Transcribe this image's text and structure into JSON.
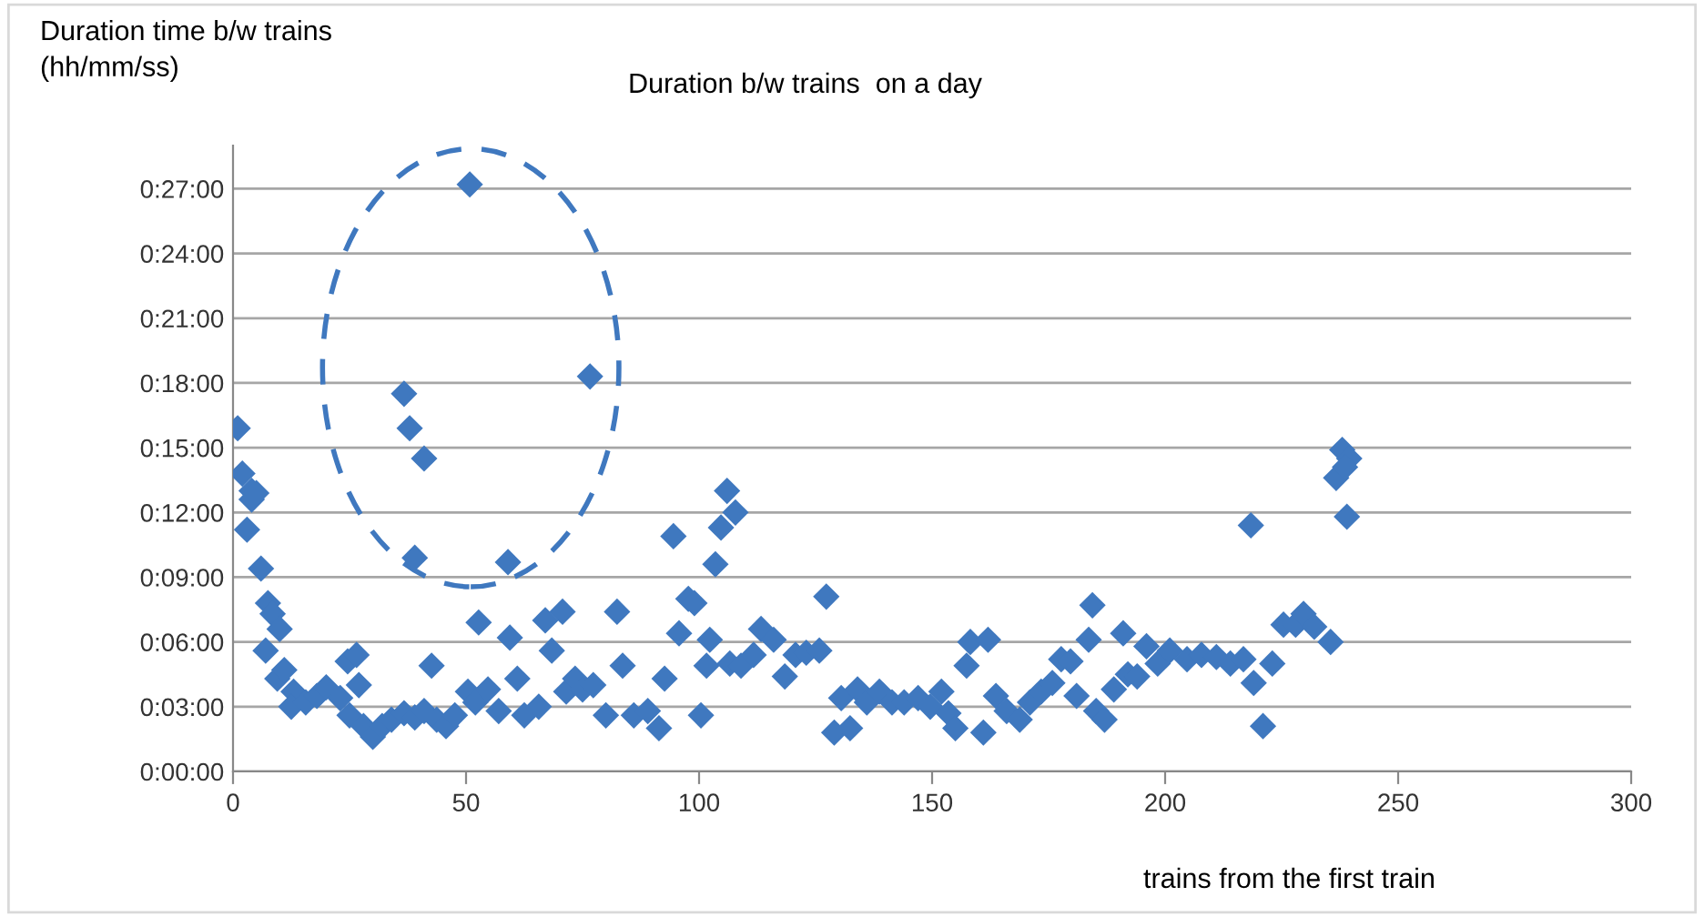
{
  "chart_data": {
    "type": "scatter",
    "title": "Duration b/w trains  on a day",
    "ylabel": "Duration time b/w trains\n(hh/mm/ss)",
    "xlabel": "trains from the first train",
    "marker": "diamond",
    "grid": "y",
    "legend": false,
    "xlim": [
      0,
      300
    ],
    "xticks": [
      0,
      50,
      100,
      150,
      200,
      250,
      300
    ],
    "ylim": [
      0,
      29
    ],
    "yticks": [
      {
        "value": 0,
        "label": "0:00:00"
      },
      {
        "value": 3,
        "label": "0:03:00"
      },
      {
        "value": 6,
        "label": "0:06:00"
      },
      {
        "value": 9,
        "label": "0:09:00"
      },
      {
        "value": 12,
        "label": "0:12:00"
      },
      {
        "value": 15,
        "label": "0:15:00"
      },
      {
        "value": 18,
        "label": "0:18:00"
      },
      {
        "value": 21,
        "label": "0:21:00"
      },
      {
        "value": 24,
        "label": "0:24:00"
      },
      {
        "value": 27,
        "label": "0:27:00"
      }
    ],
    "series": [
      {
        "color": "#3f78bf",
        "x": [
          1,
          2,
          3,
          4,
          4,
          5,
          6,
          7.5,
          8.5,
          10,
          7,
          9.5,
          11,
          13,
          12.5,
          15.6,
          18,
          20,
          23,
          24.6,
          26.5,
          27,
          25,
          28,
          30,
          32,
          34,
          36.7,
          39,
          41,
          42.6,
          43.7,
          45.7,
          47.6,
          36.7,
          37.9,
          41,
          39,
          50.8,
          52.7,
          59,
          76.6,
          50.4,
          52,
          54.7,
          57,
          59.4,
          61,
          62.5,
          65.6,
          67,
          68.4,
          70.7,
          71.5,
          73.4,
          75,
          77.3,
          80,
          82.4,
          83.6,
          86,
          89,
          91.4,
          92.6,
          94.5,
          95.7,
          97.7,
          99,
          100.4,
          101.6,
          102.3,
          103.5,
          104.7,
          106,
          107.8,
          106.6,
          109,
          111.7,
          113.3,
          116,
          118.4,
          120.7,
          123,
          125.8,
          127.3,
          129,
          130.5,
          132.4,
          134,
          136,
          138.7,
          141.4,
          144,
          147,
          149.6,
          152,
          153.5,
          155,
          157.4,
          158.2,
          162,
          163.7,
          161,
          166,
          168.8,
          171,
          173.4,
          175.8,
          177.7,
          179.7,
          181,
          183.6,
          184.4,
          185.2,
          187,
          189,
          191,
          192,
          194,
          196,
          198.4,
          201,
          204.7,
          207.8,
          211,
          214,
          216.8,
          218.4,
          219,
          221,
          223,
          225.4,
          228,
          229.7,
          232,
          235.5,
          236.7,
          238,
          239.5,
          239,
          238.6
        ],
        "values": [
          15.9,
          13.8,
          11.2,
          13.0,
          12.6,
          12.9,
          9.4,
          7.8,
          7.3,
          6.6,
          5.6,
          4.3,
          4.7,
          3.7,
          3.0,
          3.2,
          3.5,
          3.9,
          3.4,
          5.1,
          5.4,
          4.0,
          2.6,
          2.1,
          1.6,
          2.1,
          2.4,
          2.7,
          2.5,
          2.8,
          4.9,
          2.4,
          2.1,
          2.6,
          17.5,
          15.9,
          14.5,
          9.9,
          27.2,
          6.9,
          9.7,
          18.3,
          3.7,
          3.2,
          3.8,
          2.8,
          6.2,
          4.3,
          2.6,
          3.0,
          7.0,
          5.6,
          7.4,
          3.7,
          4.3,
          3.8,
          4.0,
          2.6,
          7.4,
          4.9,
          2.6,
          2.8,
          2.0,
          4.3,
          10.9,
          6.4,
          8.0,
          7.8,
          2.6,
          4.9,
          6.1,
          9.6,
          11.3,
          13.0,
          12.0,
          5.0,
          4.9,
          5.4,
          6.6,
          6.1,
          4.4,
          5.4,
          5.5,
          5.6,
          8.1,
          1.8,
          3.4,
          2.0,
          3.8,
          3.2,
          3.7,
          3.2,
          3.2,
          3.4,
          3.0,
          3.7,
          2.7,
          2.0,
          4.9,
          6.0,
          6.1,
          3.5,
          1.8,
          2.8,
          2.4,
          3.2,
          3.7,
          4.1,
          5.2,
          5.1,
          3.5,
          6.1,
          7.7,
          2.8,
          2.4,
          3.8,
          6.4,
          4.5,
          4.4,
          5.8,
          5.0,
          5.6,
          5.2,
          5.4,
          5.3,
          5.0,
          5.2,
          11.4,
          4.1,
          2.1,
          5.0,
          6.8,
          6.8,
          7.3,
          6.7,
          6.0,
          13.6,
          14.9,
          14.5,
          11.8,
          14.1
        ]
      }
    ]
  }
}
